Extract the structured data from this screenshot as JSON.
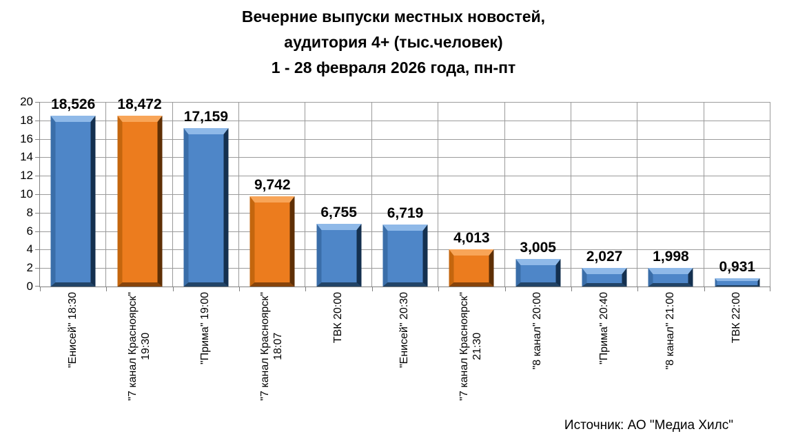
{
  "title": {
    "lines": [
      "Вечерние выпуски местных новостей,",
      "аудитория 4+ (тыс.человек)",
      "1 - 28 февраля 2026 года, пн-пт"
    ]
  },
  "source": "Источник: АО \"Медиа Хилс\"",
  "colors": {
    "blue": {
      "face": "#4E86C8",
      "top": "#8FB9E8",
      "left": "#3A6EA9",
      "right": "#14304F",
      "bottom": "#224467"
    },
    "orange": {
      "face": "#EC7C1E",
      "top": "#F8A558",
      "left": "#C4660E",
      "right": "#5E2F05",
      "bottom": "#87440B"
    }
  },
  "chart_data": {
    "type": "bar",
    "title": "Вечерние выпуски местных новостей, аудитория 4+ (тыс.человек), 1 - 28 февраля 2026 года, пн-пт",
    "xlabel": "",
    "ylabel": "",
    "ylim": [
      0,
      20
    ],
    "yticks": [
      0,
      2,
      4,
      6,
      8,
      10,
      12,
      14,
      16,
      18,
      20
    ],
    "grid": true,
    "legend": "none",
    "categories": [
      {
        "label_lines": [
          "\"Енисей\" 18:30"
        ],
        "value": 18.526,
        "display": "18,526",
        "color": "blue"
      },
      {
        "label_lines": [
          "\"7 канал Красноярск\"",
          "19:30"
        ],
        "value": 18.472,
        "display": "18,472",
        "color": "orange"
      },
      {
        "label_lines": [
          "\"Прима\" 19:00"
        ],
        "value": 17.159,
        "display": "17,159",
        "color": "blue"
      },
      {
        "label_lines": [
          "\"7 канал Красноярск\"",
          "18:07"
        ],
        "value": 9.742,
        "display": "9,742",
        "color": "orange"
      },
      {
        "label_lines": [
          "ТВК 20:00"
        ],
        "value": 6.755,
        "display": "6,755",
        "color": "blue"
      },
      {
        "label_lines": [
          "\"Енисей\" 20:30"
        ],
        "value": 6.719,
        "display": "6,719",
        "color": "blue"
      },
      {
        "label_lines": [
          "\"7 канал Красноярск\"",
          "21:30"
        ],
        "value": 4.013,
        "display": "4,013",
        "color": "orange"
      },
      {
        "label_lines": [
          "\"8 канал\" 20:00"
        ],
        "value": 3.005,
        "display": "3,005",
        "color": "blue"
      },
      {
        "label_lines": [
          "\"Прима\" 20:40"
        ],
        "value": 2.027,
        "display": "2,027",
        "color": "blue"
      },
      {
        "label_lines": [
          "\"8 канал\" 21:00"
        ],
        "value": 1.998,
        "display": "1,998",
        "color": "blue"
      },
      {
        "label_lines": [
          "ТВК 22:00"
        ],
        "value": 0.931,
        "display": "0,931",
        "color": "blue"
      }
    ]
  }
}
